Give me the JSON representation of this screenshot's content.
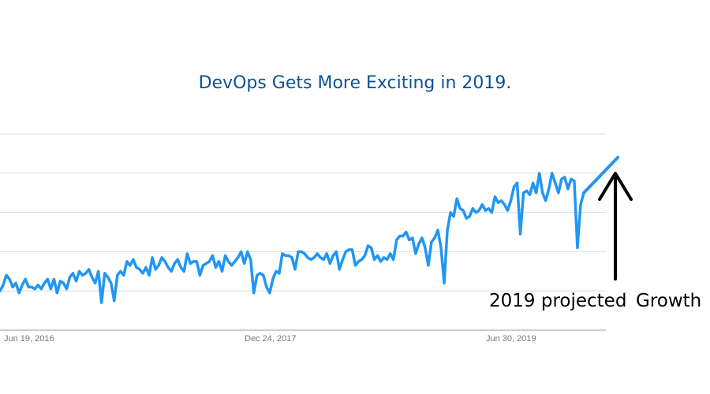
{
  "chart_data": {
    "type": "line",
    "title": "DevOps Gets More Exciting in 2019.",
    "xlabel": "",
    "ylabel": "",
    "x_tick_labels": [
      "Jun 19, 2016",
      "Dec 24, 2017",
      "Jun 30, 2019"
    ],
    "ylim": [
      0,
      100
    ],
    "grid": true,
    "series": [
      {
        "color": "#2196f3",
        "values": [
          20,
          23,
          28,
          26,
          22,
          24,
          19,
          23,
          26,
          22,
          22,
          21,
          23,
          21,
          24,
          26,
          21,
          26,
          19,
          25,
          24,
          21,
          27,
          29,
          25,
          30,
          28,
          29,
          31,
          27,
          24,
          30,
          14,
          29,
          27,
          24,
          15,
          28,
          30,
          28,
          35,
          33,
          36,
          32,
          31,
          29,
          32,
          28,
          37,
          31,
          33,
          37,
          35,
          32,
          30,
          34,
          36,
          32,
          30,
          39,
          34,
          35,
          35,
          28,
          33,
          34,
          35,
          38,
          32,
          35,
          30,
          38,
          35,
          33,
          35,
          37,
          40,
          34,
          40,
          36,
          19,
          28,
          29,
          28,
          22,
          19,
          26,
          30,
          29,
          39,
          38,
          38,
          37,
          31,
          40,
          40,
          39,
          37,
          36,
          37,
          39,
          37,
          36,
          39,
          34,
          38,
          40,
          31,
          36,
          40,
          41,
          41,
          33,
          35,
          36,
          38,
          43,
          42,
          36,
          38,
          35,
          37,
          36,
          39,
          36,
          46,
          48,
          48,
          50,
          46,
          47,
          39,
          44,
          47,
          42,
          33,
          45,
          47,
          51,
          42,
          24,
          51,
          60,
          58,
          67,
          62,
          61,
          57,
          58,
          62,
          60,
          61,
          64,
          61,
          62,
          60,
          68,
          65,
          66,
          64,
          61,
          66,
          73,
          75,
          49,
          70,
          71,
          69,
          75,
          70,
          80,
          70,
          66,
          72,
          80,
          75,
          70,
          77,
          78,
          72,
          77,
          76,
          42,
          64,
          70
        ]
      }
    ],
    "projection": {
      "label_part1": "2019 projected",
      "label_part2": "Growth",
      "from_value": 70,
      "to_value": 88,
      "color": "#2196f3"
    }
  }
}
